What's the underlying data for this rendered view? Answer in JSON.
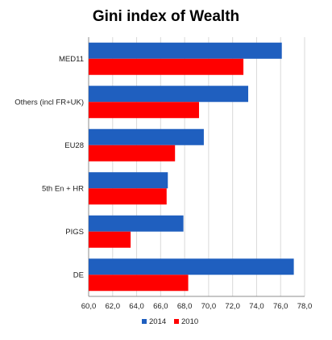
{
  "chart_data": {
    "type": "bar",
    "orientation": "horizontal",
    "title": "Gini index of Wealth",
    "categories": [
      "MED11",
      "Others (incl FR+UK)",
      "EU28",
      "5th En + HR",
      "PIGS",
      "DE"
    ],
    "series": [
      {
        "name": "2014",
        "color": "#1f5fbf",
        "values": [
          76.1,
          73.3,
          69.6,
          66.6,
          67.9,
          77.1
        ]
      },
      {
        "name": "2010",
        "color": "#ff0000",
        "values": [
          72.9,
          69.2,
          67.2,
          66.5,
          63.5,
          68.3
        ]
      }
    ],
    "xlim": [
      60,
      78
    ],
    "xticks": [
      "60,0",
      "62,0",
      "64,0",
      "66,0",
      "68,0",
      "70,0",
      "72,0",
      "74,0",
      "76,0",
      "78,0"
    ],
    "legend_position": "bottom",
    "grid": true
  }
}
